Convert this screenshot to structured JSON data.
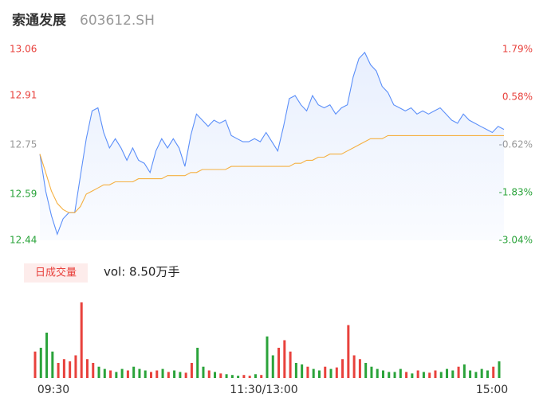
{
  "chart_data": [
    {
      "type": "line",
      "title": "索通发展",
      "subtitle": "603612.SH",
      "x": [
        0,
        3,
        6,
        9,
        12,
        15,
        18,
        21,
        24,
        27,
        30,
        33,
        36,
        39,
        42,
        45,
        48,
        51,
        54,
        57,
        60,
        63,
        66,
        69,
        72,
        75,
        78,
        81,
        84,
        87,
        90,
        93,
        96,
        99,
        102,
        105,
        108,
        111,
        114,
        117,
        120,
        123,
        126,
        129,
        132,
        135,
        138,
        141,
        144,
        147,
        150,
        153,
        156,
        159,
        162,
        165,
        168,
        171,
        174,
        177,
        180,
        183,
        186,
        189,
        192,
        195,
        198,
        201,
        204,
        207,
        210,
        213,
        216,
        219,
        222,
        225,
        228,
        231,
        234,
        237,
        240
      ],
      "xlim": [
        0,
        240
      ],
      "series": [
        {
          "color": "#5b8ff9",
          "values": [
            12.72,
            12.6,
            12.52,
            12.46,
            12.51,
            12.53,
            12.53,
            12.65,
            12.77,
            12.86,
            12.87,
            12.79,
            12.74,
            12.77,
            12.74,
            12.7,
            12.74,
            12.7,
            12.69,
            12.66,
            12.73,
            12.77,
            12.74,
            12.77,
            12.74,
            12.68,
            12.78,
            12.85,
            12.83,
            12.81,
            12.83,
            12.82,
            12.83,
            12.78,
            12.77,
            12.76,
            12.76,
            12.77,
            12.76,
            12.79,
            12.76,
            12.73,
            12.81,
            12.9,
            12.91,
            12.88,
            12.86,
            12.91,
            12.88,
            12.87,
            12.88,
            12.85,
            12.87,
            12.88,
            12.97,
            13.03,
            13.05,
            13.01,
            12.99,
            12.94,
            12.92,
            12.88,
            12.87,
            12.86,
            12.87,
            12.85,
            12.86,
            12.85,
            12.86,
            12.87,
            12.85,
            12.83,
            12.82,
            12.85,
            12.83,
            12.82,
            12.81,
            12.8,
            12.79,
            12.81,
            12.8
          ]
        },
        {
          "color": "#f5b041",
          "values": [
            12.72,
            12.66,
            12.6,
            12.56,
            12.54,
            12.53,
            12.53,
            12.55,
            12.59,
            12.6,
            12.61,
            12.62,
            12.62,
            12.63,
            12.63,
            12.63,
            12.63,
            12.64,
            12.64,
            12.64,
            12.64,
            12.64,
            12.65,
            12.65,
            12.65,
            12.65,
            12.66,
            12.66,
            12.67,
            12.67,
            12.67,
            12.67,
            12.67,
            12.68,
            12.68,
            12.68,
            12.68,
            12.68,
            12.68,
            12.68,
            12.68,
            12.68,
            12.68,
            12.68,
            12.69,
            12.69,
            12.7,
            12.7,
            12.71,
            12.71,
            12.72,
            12.72,
            12.72,
            12.73,
            12.74,
            12.75,
            12.76,
            12.77,
            12.77,
            12.77,
            12.78,
            12.78,
            12.78,
            12.78,
            12.78,
            12.78,
            12.78,
            12.78,
            12.78,
            12.78,
            12.78,
            12.78,
            12.78,
            12.78,
            12.78,
            12.78,
            12.78,
            12.78,
            12.78,
            12.78,
            12.78
          ]
        }
      ],
      "ylim": [
        12.44,
        13.06
      ],
      "yticks": [
        13.06,
        12.91,
        12.75,
        12.59,
        12.44
      ],
      "y2lim": [
        -3.04,
        1.79
      ],
      "y2ticks": [
        {
          "value": 1.79,
          "label": "1.79%"
        },
        {
          "value": 0.58,
          "label": "0.58%"
        },
        {
          "value": -0.62,
          "label": "-0.62%"
        },
        {
          "value": -1.83,
          "label": "-1.83%"
        },
        {
          "value": -3.04,
          "label": "-3.04%"
        }
      ]
    },
    {
      "type": "bar",
      "title": "日成交量",
      "subtitle": "vol: 8.50万手",
      "ylim": [
        0,
        100
      ],
      "xticks": [
        {
          "value": 0,
          "label": "09:30"
        },
        {
          "value": 120,
          "label": "11:30/13:00"
        },
        {
          "value": 240,
          "label": "15:00"
        }
      ],
      "values": [
        35,
        40,
        60,
        35,
        20,
        25,
        22,
        30,
        100,
        25,
        20,
        15,
        12,
        10,
        8,
        12,
        10,
        15,
        12,
        10,
        8,
        10,
        12,
        8,
        10,
        8,
        7,
        20,
        40,
        15,
        10,
        8,
        6,
        5,
        4,
        3,
        4,
        3,
        5,
        4,
        55,
        30,
        40,
        50,
        35,
        20,
        18,
        15,
        12,
        10,
        15,
        12,
        14,
        25,
        70,
        30,
        25,
        20,
        15,
        12,
        10,
        8,
        8,
        12,
        8,
        6,
        10,
        8,
        7,
        10,
        8,
        12,
        10,
        15,
        18,
        10,
        8,
        12,
        10,
        15,
        22
      ],
      "up_color": "#e8413c",
      "down_color": "#2aa33a"
    }
  ]
}
